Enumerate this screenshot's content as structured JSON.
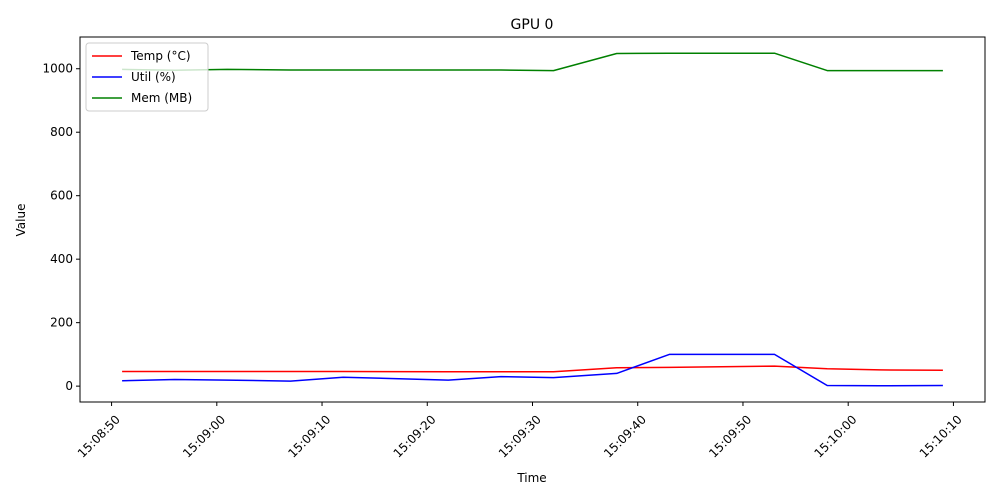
{
  "chart_data": {
    "type": "line",
    "title": "GPU 0",
    "xlabel": "Time",
    "ylabel": "Value",
    "xlim": [
      "15:08:47",
      "15:10:13"
    ],
    "ylim": [
      -50,
      1100
    ],
    "x_ticks": [
      "15:08:50",
      "15:09:00",
      "15:09:10",
      "15:09:20",
      "15:09:30",
      "15:09:40",
      "15:09:50",
      "15:10:00",
      "15:10:10"
    ],
    "y_ticks": [
      0,
      200,
      400,
      600,
      800,
      1000
    ],
    "grid": false,
    "legend_position": "top-left",
    "series": [
      {
        "name": "Temp (°C)",
        "color": "#ff0000",
        "points": [
          {
            "x": "15:08:51",
            "y": 46
          },
          {
            "x": "15:08:56",
            "y": 46
          },
          {
            "x": "15:09:01",
            "y": 46
          },
          {
            "x": "15:09:07",
            "y": 46
          },
          {
            "x": "15:09:12",
            "y": 46
          },
          {
            "x": "15:09:22",
            "y": 45
          },
          {
            "x": "15:09:27",
            "y": 45
          },
          {
            "x": "15:09:32",
            "y": 45
          },
          {
            "x": "15:09:38",
            "y": 58
          },
          {
            "x": "15:09:43",
            "y": 59
          },
          {
            "x": "15:09:53",
            "y": 63
          },
          {
            "x": "15:09:58",
            "y": 55
          },
          {
            "x": "15:10:03",
            "y": 51
          },
          {
            "x": "15:10:09",
            "y": 50
          }
        ]
      },
      {
        "name": "Util (%)",
        "color": "#0000ff",
        "points": [
          {
            "x": "15:08:51",
            "y": 17
          },
          {
            "x": "15:08:56",
            "y": 21
          },
          {
            "x": "15:09:01",
            "y": 19
          },
          {
            "x": "15:09:07",
            "y": 16
          },
          {
            "x": "15:09:12",
            "y": 28
          },
          {
            "x": "15:09:22",
            "y": 19
          },
          {
            "x": "15:09:27",
            "y": 30
          },
          {
            "x": "15:09:32",
            "y": 27
          },
          {
            "x": "15:09:38",
            "y": 40
          },
          {
            "x": "15:09:43",
            "y": 100
          },
          {
            "x": "15:09:53",
            "y": 100
          },
          {
            "x": "15:09:58",
            "y": 2
          },
          {
            "x": "15:10:03",
            "y": 1
          },
          {
            "x": "15:10:09",
            "y": 2
          }
        ]
      },
      {
        "name": "Mem (MB)",
        "color": "#008000",
        "points": [
          {
            "x": "15:08:51",
            "y": 998
          },
          {
            "x": "15:08:56",
            "y": 995
          },
          {
            "x": "15:09:01",
            "y": 998
          },
          {
            "x": "15:09:07",
            "y": 996
          },
          {
            "x": "15:09:12",
            "y": 996
          },
          {
            "x": "15:09:22",
            "y": 996
          },
          {
            "x": "15:09:27",
            "y": 996
          },
          {
            "x": "15:09:32",
            "y": 994
          },
          {
            "x": "15:09:38",
            "y": 1048
          },
          {
            "x": "15:09:43",
            "y": 1049
          },
          {
            "x": "15:09:53",
            "y": 1049
          },
          {
            "x": "15:09:58",
            "y": 994
          },
          {
            "x": "15:10:03",
            "y": 994
          },
          {
            "x": "15:10:09",
            "y": 994
          }
        ]
      }
    ]
  }
}
